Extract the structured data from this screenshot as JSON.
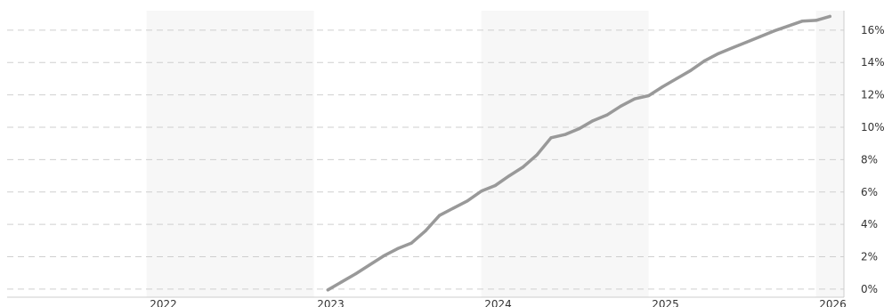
{
  "chart_data": {
    "type": "line",
    "title": "",
    "xlabel": "",
    "ylabel": "",
    "x_ticks": [
      "2022",
      "2023",
      "2024",
      "2025",
      "2026"
    ],
    "y_ticks": [
      "0%",
      "2%",
      "4%",
      "6%",
      "8%",
      "10%",
      "12%",
      "14%",
      "16%"
    ],
    "y_tick_values": [
      0,
      2,
      4,
      6,
      8,
      10,
      12,
      14,
      16
    ],
    "ylim": [
      -0.5,
      17.2
    ],
    "xlim": [
      "2021-03",
      "2026-03"
    ],
    "grid": {
      "horizontal": true,
      "style": "dashed",
      "vertical": false
    },
    "shaded_year_bands": [
      "2022",
      "2024",
      "2026"
    ],
    "legend": "none",
    "series": [
      {
        "color": "#999999",
        "x": [
          "2023-02",
          "2023-03",
          "2023-04",
          "2023-05",
          "2023-06",
          "2023-07",
          "2023-08",
          "2023-09",
          "2023-10",
          "2023-11",
          "2023-12",
          "2024-01",
          "2024-02",
          "2024-03",
          "2024-04",
          "2024-05",
          "2024-06",
          "2024-07",
          "2024-08",
          "2024-09",
          "2024-10",
          "2024-11",
          "2024-12",
          "2025-01",
          "2025-02",
          "2025-03",
          "2025-04",
          "2025-05",
          "2025-06",
          "2025-07",
          "2025-08",
          "2025-09",
          "2025-10",
          "2025-11",
          "2025-12",
          "2026-01",
          "2026-02"
        ],
        "y": [
          -0.05,
          0.45,
          0.95,
          1.5,
          2.05,
          2.5,
          2.85,
          3.6,
          4.55,
          5.0,
          5.45,
          6.05,
          6.4,
          7.0,
          7.55,
          8.3,
          9.35,
          9.55,
          9.9,
          10.4,
          10.75,
          11.3,
          11.75,
          11.95,
          12.5,
          13.0,
          13.5,
          14.1,
          14.55,
          14.9,
          15.25,
          15.6,
          15.95,
          16.25,
          16.55,
          16.6,
          16.85
        ]
      }
    ]
  }
}
